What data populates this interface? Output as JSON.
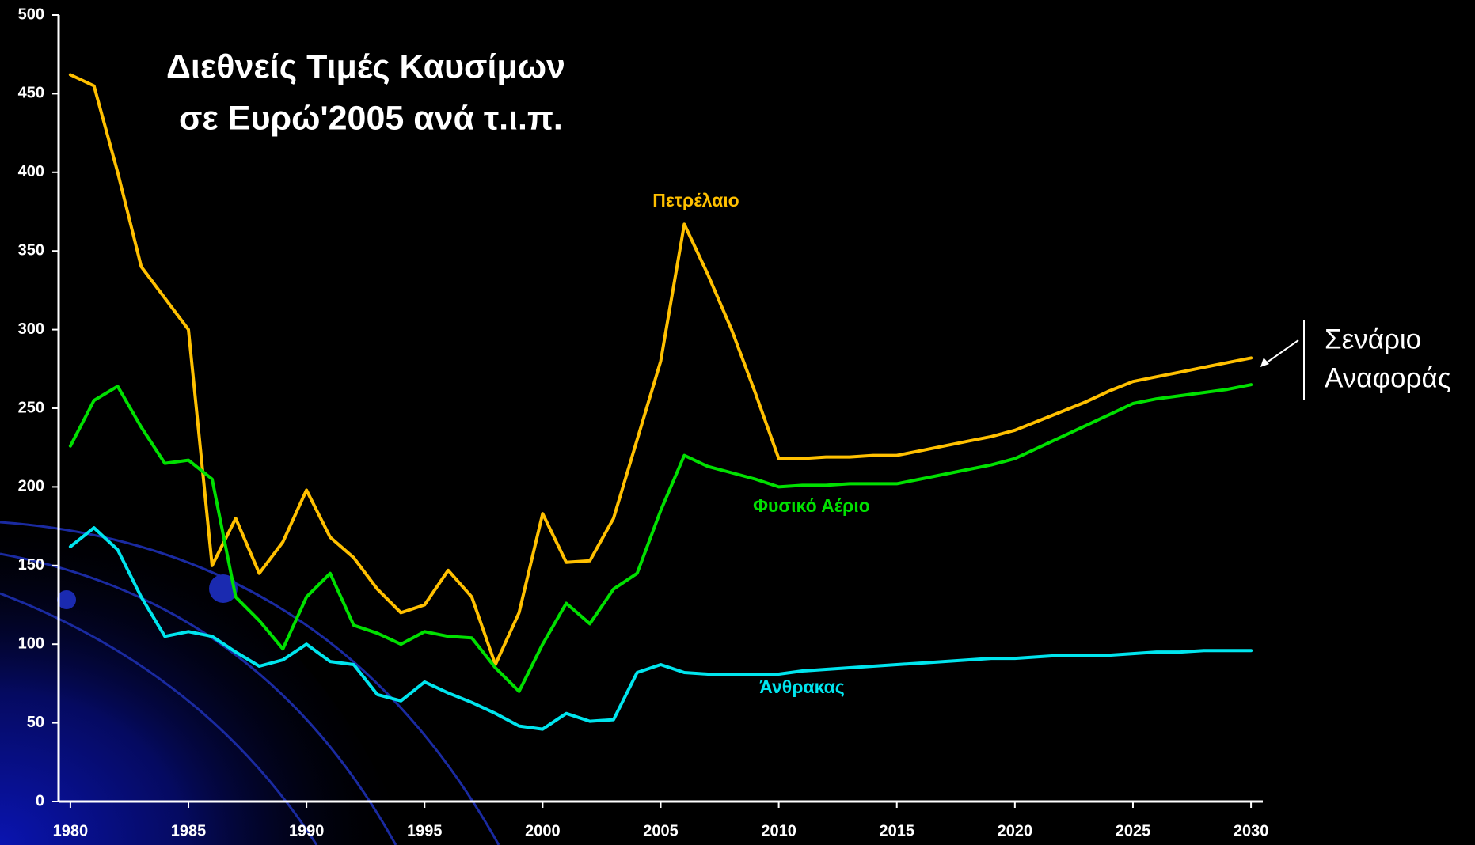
{
  "chart_data": {
    "type": "line",
    "title": [
      "Διεθνείς Τιμές Καυσίμων",
      "σε Ευρώ'2005 ανά τ.ι.π."
    ],
    "annotation": [
      "Σενάριο",
      "Αναφοράς"
    ],
    "x": [
      1980,
      1981,
      1982,
      1983,
      1984,
      1985,
      1986,
      1987,
      1988,
      1989,
      1990,
      1991,
      1992,
      1993,
      1994,
      1995,
      1996,
      1997,
      1998,
      1999,
      2000,
      2001,
      2002,
      2003,
      2004,
      2005,
      2006,
      2007,
      2008,
      2009,
      2010,
      2011,
      2012,
      2013,
      2014,
      2015,
      2016,
      2017,
      2018,
      2019,
      2020,
      2021,
      2022,
      2023,
      2024,
      2025,
      2026,
      2027,
      2028,
      2029,
      2030
    ],
    "series": [
      {
        "name": "Πετρέλαιο",
        "color": "#ffc000",
        "values": [
          462,
          455,
          400,
          340,
          320,
          300,
          150,
          180,
          145,
          165,
          198,
          168,
          155,
          135,
          120,
          125,
          147,
          130,
          87,
          120,
          183,
          152,
          153,
          180,
          230,
          280,
          367,
          335,
          300,
          260,
          218,
          218,
          219,
          219,
          220,
          220,
          223,
          226,
          229,
          232,
          236,
          242,
          248,
          254,
          261,
          267,
          270,
          273,
          276,
          279,
          282
        ]
      },
      {
        "name": "Φυσικό Αέριο",
        "color": "#00e000",
        "values": [
          226,
          255,
          264,
          238,
          215,
          217,
          205,
          130,
          115,
          97,
          130,
          145,
          112,
          107,
          100,
          108,
          105,
          104,
          85,
          70,
          100,
          126,
          113,
          135,
          145,
          185,
          220,
          213,
          209,
          205,
          200,
          201,
          201,
          202,
          202,
          202,
          205,
          208,
          211,
          214,
          218,
          225,
          232,
          239,
          246,
          253,
          256,
          258,
          260,
          262,
          265
        ]
      },
      {
        "name": "Άνθρακας",
        "color": "#00e5ee",
        "values": [
          162,
          174,
          160,
          130,
          105,
          108,
          105,
          95,
          86,
          90,
          100,
          89,
          87,
          68,
          64,
          76,
          69,
          63,
          56,
          48,
          46,
          56,
          51,
          52,
          82,
          87,
          82,
          81,
          81,
          81,
          81,
          83,
          84,
          85,
          86,
          87,
          88,
          89,
          90,
          91,
          91,
          92,
          93,
          93,
          93,
          94,
          95,
          95,
          96,
          96,
          96
        ]
      }
    ],
    "xlim": [
      1979.5,
      2030.5
    ],
    "xticks": [
      1980,
      1985,
      1990,
      1995,
      2000,
      2005,
      2010,
      2015,
      2020,
      2025,
      2030
    ],
    "ylim": [
      0,
      500
    ],
    "yticks": [
      0,
      50,
      100,
      150,
      200,
      250,
      300,
      350,
      400,
      450,
      500
    ],
    "grid": false
  }
}
